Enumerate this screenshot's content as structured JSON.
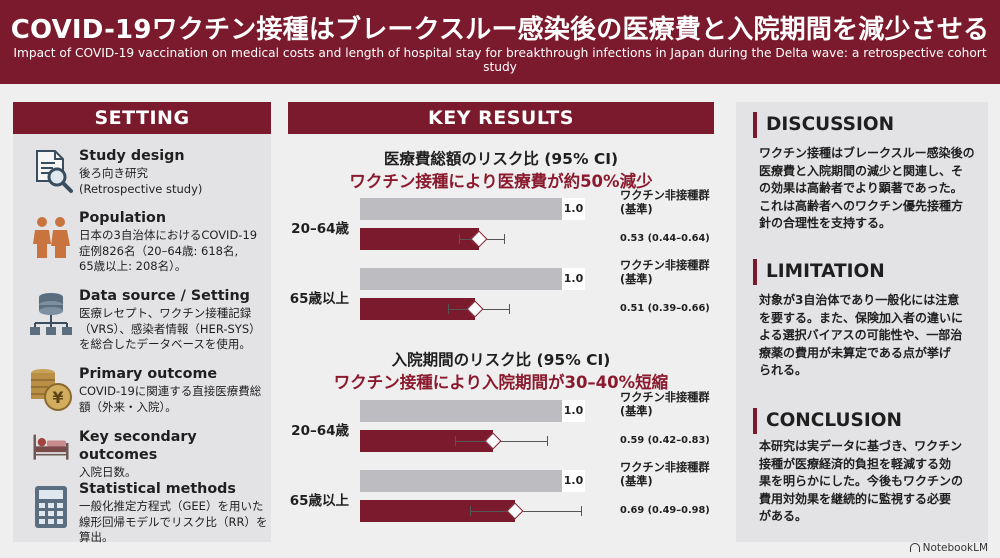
{
  "header": {
    "title": "COVID-19ワクチン接種はブレークスルー感染後の医療費と入院期間を減少させる",
    "subtitle": "Impact of COVID-19 vaccination on medical costs and length of hospital stay for breakthrough infections in Japan during the Delta wave: a retrospective cohort study"
  },
  "setting": {
    "title": "SETTING",
    "items": [
      {
        "icon": "document-search-icon",
        "heading": "Study design",
        "lines": [
          "後ろ向き研究",
          "(Retrospective study)"
        ]
      },
      {
        "icon": "people-icon",
        "heading": "Population",
        "lines": [
          "日本の3自治体におけるCOVID-19",
          "症例826名（20–64歳: 618名,",
          "65歳以上: 208名）。"
        ]
      },
      {
        "icon": "database-icon",
        "heading": "Data source / Setting",
        "lines": [
          "医療レセプト、ワクチン接種記録",
          "（VRS）、感染者情報（HER-SYS）",
          "を総合したデータベースを使用。"
        ]
      },
      {
        "icon": "coins-yen-icon",
        "heading": "Primary outcome",
        "lines": [
          "COVID-19に関連する直接医療費総",
          "額（外来・入院）。"
        ]
      },
      {
        "icon": "hospital-bed-icon",
        "heading": "Key secondary outcomes",
        "lines": [
          "入院日数。"
        ]
      },
      {
        "icon": "calculator-icon",
        "heading": "Statistical methods",
        "lines": [
          "一般化推定方程式（GEE）を用いた",
          "線形回帰モデルでリスク比（RR）を",
          "算出。"
        ]
      }
    ]
  },
  "results": {
    "title": "KEY RESULTS",
    "reference_label_line1": "ワクチン非接種群",
    "reference_label_line2": "(基準)"
  },
  "chart_data": [
    {
      "type": "bar",
      "title": "医療費総額のリスク比 (95% CI)",
      "subtitle": "ワクチン接種により医療費が約50%減少",
      "categories": [
        "20–64歳",
        "65歳以上"
      ],
      "reference_value": 1.0,
      "reference_value_label": "1.0",
      "series": [
        {
          "name": "ワクチン非接種群 (基準)",
          "values": [
            1.0,
            1.0
          ]
        },
        {
          "values": [
            0.53,
            0.51
          ],
          "ci_lower": [
            0.44,
            0.39
          ],
          "ci_upper": [
            0.64,
            0.66
          ],
          "labels": [
            "0.53 (0.44–0.64)",
            "0.51 (0.39–0.66)"
          ]
        }
      ]
    },
    {
      "type": "bar",
      "title": "入院期間のリスク比 (95% CI)",
      "subtitle": "ワクチン接種により入院期間が30–40%短縮",
      "categories": [
        "20–64歳",
        "65歳以上"
      ],
      "reference_value": 1.0,
      "reference_value_label": "1.0",
      "series": [
        {
          "name": "ワクチン非接種群 (基準)",
          "values": [
            1.0,
            1.0
          ]
        },
        {
          "values": [
            0.59,
            0.69
          ],
          "ci_lower": [
            0.42,
            0.49
          ],
          "ci_upper": [
            0.83,
            0.98
          ],
          "labels": [
            "0.59 (0.42–0.83)",
            "0.69 (0.49–0.98)"
          ]
        }
      ]
    }
  ],
  "discussion": {
    "heading": "DISCUSSION",
    "lines": [
      "ワクチン接種はブレークスルー感染後の",
      "医療費と入院期間の減少と関連し、そ",
      "の効果は高齢者でより顕著であった。",
      "これは高齢者へのワクチン優先接種方",
      "針の合理性を支持する。"
    ]
  },
  "limitation": {
    "heading": "LIMITATION",
    "lines": [
      "対象が3自治体であり一般化には注意",
      "を要する。また、保険加入者の違いに",
      "よる選択バイアスの可能性や、一部治",
      "療薬の費用が未算定である点が挙げ",
      "られる。"
    ]
  },
  "conclusion": {
    "heading": "CONCLUSION",
    "lines": [
      "本研究は実データに基づき、ワクチン",
      "接種が医療経済的負担を軽減する効",
      "果を明らかにした。今後もワクチンの",
      "費用対効果を継続的に監視する必要",
      "がある。"
    ]
  },
  "footer": {
    "brand": "NotebookLM"
  },
  "colors": {
    "accent": "#7a1a2c",
    "panel": "#e3e3e6",
    "reference_bar": "#bdbdc1"
  }
}
